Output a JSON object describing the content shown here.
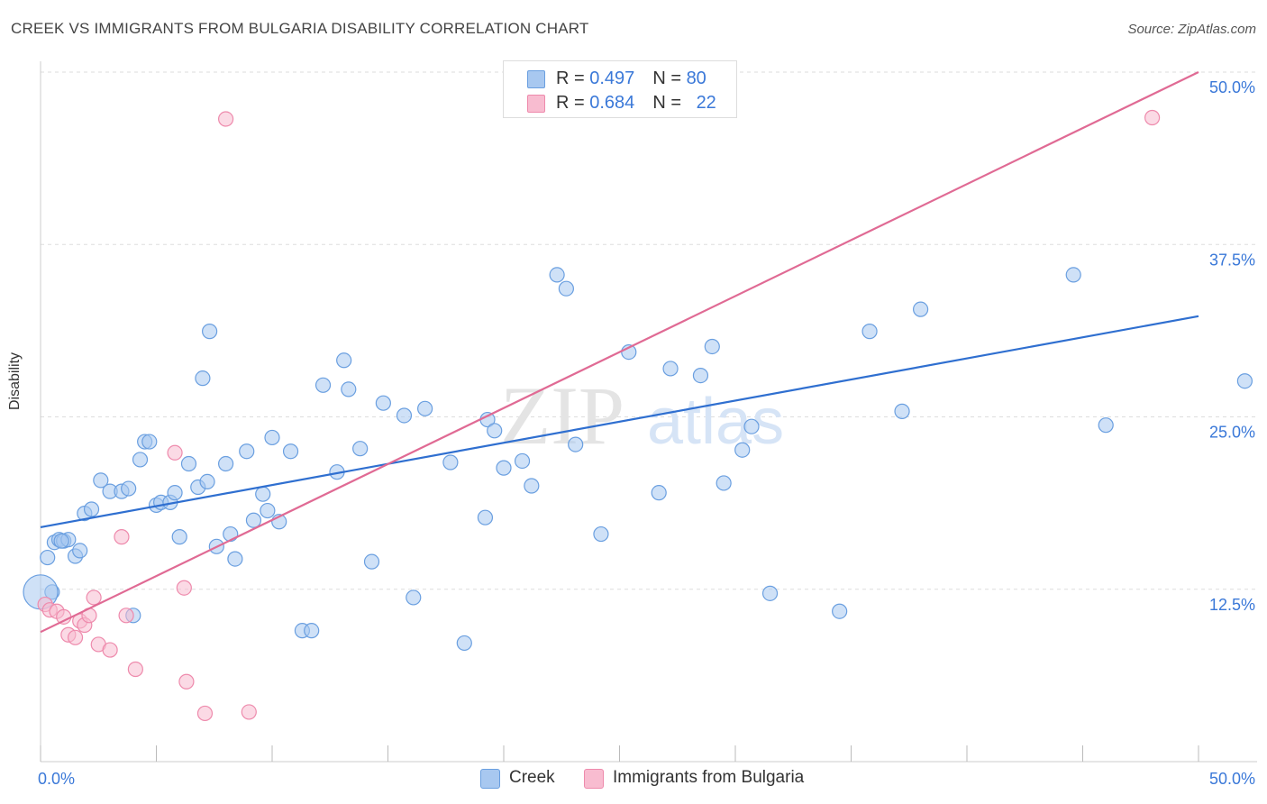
{
  "header": {
    "title": "CREEK VS IMMIGRANTS FROM BULGARIA DISABILITY CORRELATION CHART",
    "source": "Source: ZipAtlas.com"
  },
  "watermark": {
    "zip": "ZIP",
    "atlas": "atlas"
  },
  "legend_top": {
    "rows": [
      {
        "r_label": "R = ",
        "r_value": "0.497",
        "n_label": "N = ",
        "n_value": "80"
      },
      {
        "r_label": "R = ",
        "r_value": "0.684",
        "n_label": "N = ",
        "n_value": "22"
      }
    ]
  },
  "legend_bottom": {
    "items": [
      {
        "label": "Creek"
      },
      {
        "label": "Immigrants from Bulgaria"
      }
    ]
  },
  "colors": {
    "creek_fill": "#a8c8f0",
    "creek_stroke": "#6a9fe0",
    "creek_line": "#2f6fd0",
    "bulgaria_fill": "#f8bcd0",
    "bulgaria_stroke": "#ee8aac",
    "bulgaria_line": "#e06a94",
    "grid": "#dddddd",
    "tick_text": "#3a78d8"
  },
  "chart_data": {
    "type": "scatter",
    "title": "CREEK VS IMMIGRANTS FROM BULGARIA DISABILITY CORRELATION CHART",
    "xlabel": "",
    "ylabel": "Disability",
    "xlim": [
      0,
      50
    ],
    "ylim": [
      0,
      50
    ],
    "x_tick_labels": [
      "0.0%",
      "50.0%"
    ],
    "y_tick_labels": [
      "12.5%",
      "25.0%",
      "37.5%",
      "50.0%"
    ],
    "y_ticks": [
      12.5,
      25.0,
      37.5,
      50.0
    ],
    "grid": true,
    "legend_position": "top-center",
    "series": [
      {
        "name": "Creek",
        "r": 0.497,
        "n": 80,
        "trend": [
          [
            0,
            17.0
          ],
          [
            50,
            32.3
          ]
        ],
        "points": [
          [
            0.3,
            14.8
          ],
          [
            0.6,
            15.9
          ],
          [
            0.8,
            16.1
          ],
          [
            1.0,
            16.0
          ],
          [
            1.2,
            16.1
          ],
          [
            1.5,
            14.9
          ],
          [
            1.7,
            15.3
          ],
          [
            1.9,
            18.0
          ],
          [
            2.2,
            18.3
          ],
          [
            2.6,
            20.4
          ],
          [
            3.0,
            19.6
          ],
          [
            3.5,
            19.6
          ],
          [
            3.8,
            19.8
          ],
          [
            4.3,
            21.9
          ],
          [
            4.5,
            23.2
          ],
          [
            4.7,
            23.2
          ],
          [
            5.0,
            18.6
          ],
          [
            5.2,
            18.8
          ],
          [
            5.6,
            18.8
          ],
          [
            5.8,
            19.5
          ],
          [
            6.0,
            16.3
          ],
          [
            6.4,
            21.6
          ],
          [
            6.8,
            19.9
          ],
          [
            7.0,
            27.8
          ],
          [
            7.2,
            20.3
          ],
          [
            7.6,
            15.6
          ],
          [
            8.0,
            21.6
          ],
          [
            8.2,
            16.5
          ],
          [
            8.4,
            14.7
          ],
          [
            8.9,
            22.5
          ],
          [
            9.2,
            17.5
          ],
          [
            9.6,
            19.4
          ],
          [
            9.8,
            18.2
          ],
          [
            10.0,
            23.5
          ],
          [
            10.3,
            17.4
          ],
          [
            10.8,
            22.5
          ],
          [
            11.3,
            9.5
          ],
          [
            11.7,
            9.5
          ],
          [
            12.2,
            27.3
          ],
          [
            12.8,
            21.0
          ],
          [
            13.1,
            29.1
          ],
          [
            13.3,
            27.0
          ],
          [
            13.8,
            22.7
          ],
          [
            14.3,
            14.5
          ],
          [
            14.8,
            26.0
          ],
          [
            15.7,
            25.1
          ],
          [
            16.1,
            11.9
          ],
          [
            16.6,
            25.6
          ],
          [
            17.7,
            21.7
          ],
          [
            18.3,
            8.6
          ],
          [
            19.2,
            17.7
          ],
          [
            19.3,
            24.8
          ],
          [
            19.6,
            24.0
          ],
          [
            20.0,
            21.3
          ],
          [
            20.8,
            21.8
          ],
          [
            21.2,
            20.0
          ],
          [
            22.3,
            35.3
          ],
          [
            22.7,
            34.3
          ],
          [
            23.1,
            23.0
          ],
          [
            24.2,
            16.5
          ],
          [
            25.4,
            29.7
          ],
          [
            26.7,
            19.5
          ],
          [
            27.2,
            28.5
          ],
          [
            28.5,
            28.0
          ],
          [
            29.0,
            30.1
          ],
          [
            29.5,
            20.2
          ],
          [
            30.3,
            22.6
          ],
          [
            30.7,
            24.3
          ],
          [
            31.5,
            12.2
          ],
          [
            34.5,
            10.9
          ],
          [
            35.8,
            31.2
          ],
          [
            37.2,
            25.4
          ],
          [
            38.0,
            32.8
          ],
          [
            44.6,
            35.3
          ],
          [
            46.0,
            24.4
          ],
          [
            52.0,
            27.6
          ],
          [
            0.5,
            12.3
          ],
          [
            4.0,
            10.6
          ],
          [
            7.3,
            31.2
          ],
          [
            0.9,
            16.0
          ]
        ]
      },
      {
        "name": "Immigrants from Bulgaria",
        "r": 0.684,
        "n": 22,
        "trend": [
          [
            0,
            9.4
          ],
          [
            50,
            50.0
          ]
        ],
        "points": [
          [
            0.2,
            11.4
          ],
          [
            0.4,
            11.0
          ],
          [
            0.7,
            10.9
          ],
          [
            1.0,
            10.5
          ],
          [
            1.2,
            9.2
          ],
          [
            1.5,
            9.0
          ],
          [
            1.7,
            10.2
          ],
          [
            1.9,
            9.9
          ],
          [
            2.1,
            10.6
          ],
          [
            2.3,
            11.9
          ],
          [
            2.5,
            8.5
          ],
          [
            3.0,
            8.1
          ],
          [
            3.5,
            16.3
          ],
          [
            3.7,
            10.6
          ],
          [
            4.1,
            6.7
          ],
          [
            5.8,
            22.4
          ],
          [
            6.2,
            12.6
          ],
          [
            6.3,
            5.8
          ],
          [
            7.1,
            3.5
          ],
          [
            8.0,
            46.6
          ],
          [
            9.0,
            3.6
          ],
          [
            48.0,
            46.7
          ]
        ]
      }
    ]
  }
}
